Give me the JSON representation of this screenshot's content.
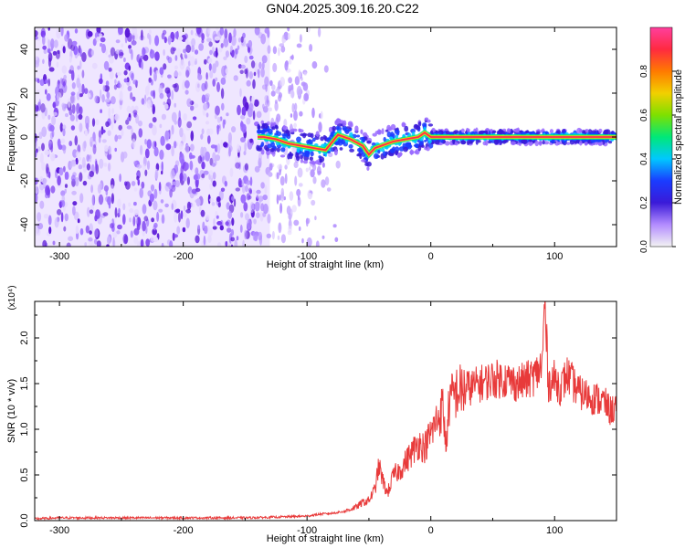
{
  "title": "GN04.2025.309.16.20.C22",
  "colors": {
    "snr_line": "#e83a3a",
    "ridge": "#ff2a50",
    "noise": "#7b2ee6",
    "colorbar_stops": [
      "#f3f3f3",
      "#b38cff",
      "#3a1ad8",
      "#1a3cff",
      "#00c8ff",
      "#00e878",
      "#7ee000",
      "#f2d000",
      "#ff7a00",
      "#ff2a40",
      "#ff3f9e"
    ]
  },
  "chart_data": [
    {
      "type": "heatmap",
      "title": "GN04.2025.309.16.20.C22",
      "xlabel": "Height of straight line (km)",
      "ylabel": "Frequency (Hz)",
      "xlim": [
        -320,
        150
      ],
      "ylim": [
        -50,
        50
      ],
      "xticks": [
        -300,
        -200,
        -100,
        0,
        100
      ],
      "yticks": [
        -40,
        -20,
        0,
        20,
        40
      ],
      "colorbar": {
        "label": "Normalized spectral amplitude",
        "range": [
          0,
          1
        ],
        "ticks": [
          "0.0",
          "0.2",
          "0.4",
          "0.6",
          "0.8"
        ]
      },
      "ridge": {
        "x": [
          -135,
          -125,
          -115,
          -105,
          -95,
          -85,
          -75,
          -65,
          -55,
          -50,
          -45,
          -40,
          -30,
          -20,
          -10,
          -5,
          0,
          20,
          40,
          60,
          80,
          100,
          120,
          140,
          150
        ],
        "y": [
          0,
          -1,
          -3,
          -4,
          -5,
          -6,
          1,
          -1,
          -4,
          -8,
          -5,
          -4,
          -2,
          -1,
          0,
          2,
          0,
          0,
          0,
          0,
          0,
          0,
          0,
          0,
          0
        ]
      }
    },
    {
      "type": "line",
      "xlabel": "Height of straight line (km)",
      "ylabel": "SNR (10 * v/v)",
      "y_multiplier": "(x10⁴)",
      "xlim": [
        -320,
        150
      ],
      "ylim": [
        0,
        2.4
      ],
      "xticks": [
        -300,
        -200,
        -100,
        0,
        100
      ],
      "yticks": [
        "0.0",
        "0.5",
        "1.0",
        "1.5",
        "2.0"
      ],
      "series": [
        {
          "x": [
            -320,
            -300,
            -250,
            -200,
            -150,
            -120,
            -100,
            -90,
            -80,
            -70,
            -60,
            -55,
            -50,
            -45,
            -42,
            -40,
            -38,
            -35,
            -30,
            -25,
            -20,
            -15,
            -10,
            -5,
            0,
            5,
            10,
            12,
            15,
            20,
            30,
            40,
            50,
            60,
            70,
            80,
            85,
            90,
            92,
            95,
            100,
            105,
            110,
            120,
            130,
            140,
            145,
            150
          ],
          "y": [
            0.02,
            0.03,
            0.03,
            0.03,
            0.03,
            0.04,
            0.05,
            0.07,
            0.08,
            0.1,
            0.15,
            0.2,
            0.22,
            0.35,
            0.6,
            0.5,
            0.4,
            0.3,
            0.5,
            0.55,
            0.65,
            0.75,
            0.85,
            0.8,
            0.95,
            1.1,
            1.25,
            0.8,
            1.3,
            1.4,
            1.45,
            1.5,
            1.55,
            1.55,
            1.5,
            1.55,
            1.6,
            1.7,
            2.4,
            1.5,
            1.55,
            1.45,
            1.6,
            1.4,
            1.35,
            1.3,
            1.2,
            1.25
          ]
        }
      ]
    }
  ]
}
